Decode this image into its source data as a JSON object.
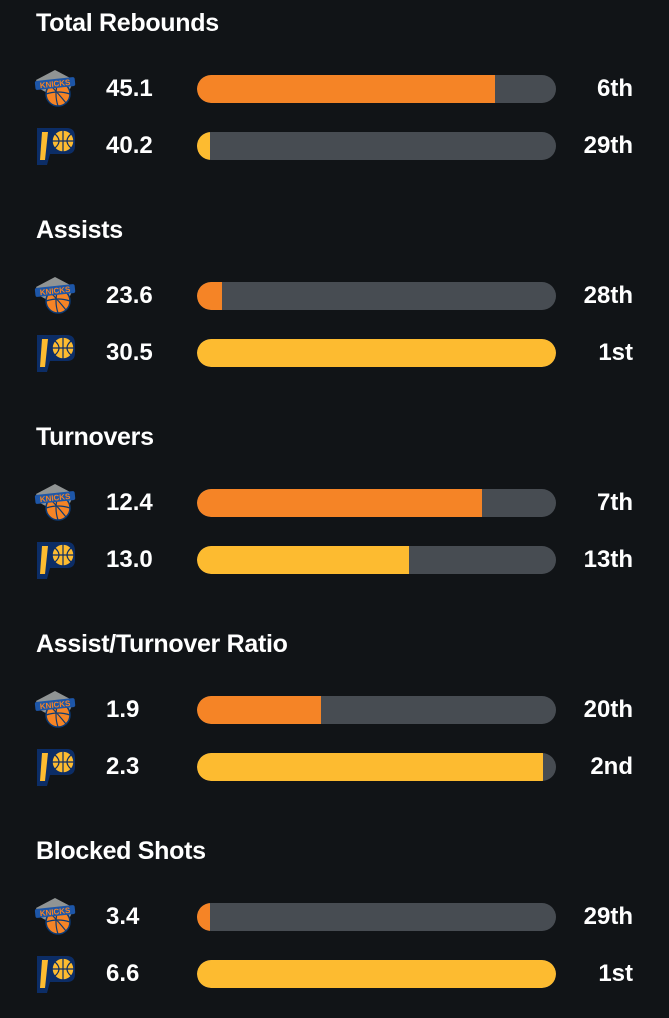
{
  "colors": {
    "background": "#111417",
    "track": "#474c52",
    "knicks": "#f58426",
    "pacers": "#fdbb30"
  },
  "teams": {
    "home": {
      "logo_icon": "knicks-logo-icon"
    },
    "away": {
      "logo_icon": "pacers-logo-icon"
    }
  },
  "sections": [
    {
      "title": "Total Rebounds",
      "rows": [
        {
          "team": "knicks",
          "value": "45.1",
          "rank": "6th",
          "bar_fraction": 0.83
        },
        {
          "team": "pacers",
          "value": "40.2",
          "rank": "29th",
          "bar_fraction": 0.035
        }
      ]
    },
    {
      "title": "Assists",
      "rows": [
        {
          "team": "knicks",
          "value": "23.6",
          "rank": "28th",
          "bar_fraction": 0.07
        },
        {
          "team": "pacers",
          "value": "30.5",
          "rank": "1st",
          "bar_fraction": 1.0
        }
      ]
    },
    {
      "title": "Turnovers",
      "rows": [
        {
          "team": "knicks",
          "value": "12.4",
          "rank": "7th",
          "bar_fraction": 0.795
        },
        {
          "team": "pacers",
          "value": "13.0",
          "rank": "13th",
          "bar_fraction": 0.59
        }
      ]
    },
    {
      "title": "Assist/Turnover Ratio",
      "rows": [
        {
          "team": "knicks",
          "value": "1.9",
          "rank": "20th",
          "bar_fraction": 0.345
        },
        {
          "team": "pacers",
          "value": "2.3",
          "rank": "2nd",
          "bar_fraction": 0.965
        }
      ]
    },
    {
      "title": "Blocked Shots",
      "rows": [
        {
          "team": "knicks",
          "value": "3.4",
          "rank": "29th",
          "bar_fraction": 0.035
        },
        {
          "team": "pacers",
          "value": "6.6",
          "rank": "1st",
          "bar_fraction": 1.0
        }
      ]
    }
  ]
}
